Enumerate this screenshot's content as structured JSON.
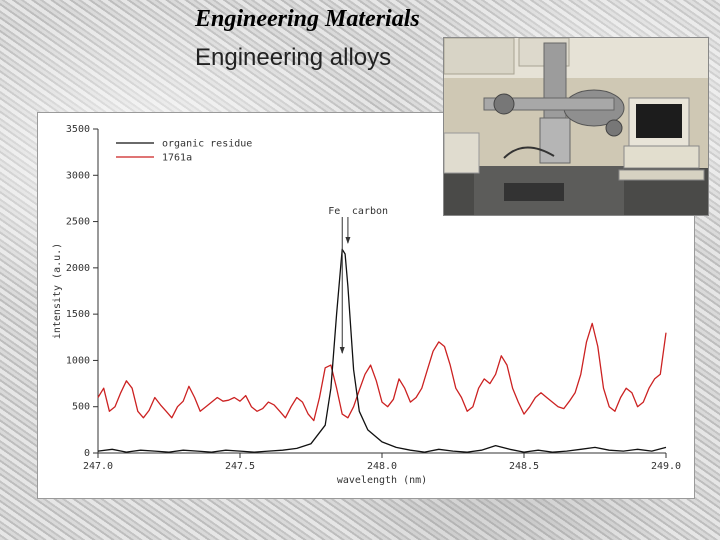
{
  "slide": {
    "title": "Engineering Materials",
    "subtitle": "Engineering alloys"
  },
  "photo": {
    "icon": "lab-instrument-photo"
  },
  "colors": {
    "organic": "#111111",
    "sample": "#cc2222",
    "axis": "#333333",
    "text": "#333333"
  },
  "chart_data": {
    "type": "line",
    "title": "",
    "xlabel": "wavelength (nm)",
    "ylabel": "intensity (a.u.)",
    "xlim": [
      247.0,
      249.0
    ],
    "ylim": [
      0,
      3500
    ],
    "xticks": [
      247.0,
      247.5,
      248.0,
      248.5,
      249.0
    ],
    "xtick_labels": [
      "247.0",
      "247.5",
      "248.0",
      "248.5",
      "249.0"
    ],
    "yticks": [
      0,
      500,
      1000,
      1500,
      2000,
      2500,
      3000,
      3500
    ],
    "ytick_labels": [
      "0",
      "500",
      "1000",
      "1500",
      "2000",
      "2500",
      "3000",
      "3500"
    ],
    "legend_position": "top-left",
    "annotations": [
      {
        "text": "Fe",
        "x": 247.86
      },
      {
        "text": "carbon",
        "x": 247.88
      }
    ],
    "series": [
      {
        "name": "organic residue",
        "color": "#111111",
        "x": [
          247.0,
          247.05,
          247.1,
          247.15,
          247.2,
          247.25,
          247.3,
          247.35,
          247.4,
          247.45,
          247.5,
          247.55,
          247.6,
          247.65,
          247.7,
          247.75,
          247.8,
          247.82,
          247.84,
          247.86,
          247.87,
          247.88,
          247.9,
          247.92,
          247.95,
          248.0,
          248.05,
          248.1,
          248.15,
          248.2,
          248.25,
          248.3,
          248.35,
          248.4,
          248.45,
          248.5,
          248.55,
          248.6,
          248.65,
          248.7,
          248.75,
          248.8,
          248.85,
          248.9,
          248.95,
          249.0
        ],
        "y": [
          20,
          40,
          10,
          30,
          20,
          10,
          30,
          20,
          10,
          30,
          20,
          10,
          20,
          30,
          50,
          100,
          300,
          700,
          1500,
          2200,
          2150,
          1800,
          900,
          450,
          250,
          120,
          60,
          30,
          10,
          40,
          20,
          10,
          30,
          80,
          40,
          10,
          30,
          10,
          20,
          40,
          60,
          30,
          20,
          40,
          20,
          60
        ]
      },
      {
        "name": "1761a",
        "color": "#cc2222",
        "x": [
          247.0,
          247.02,
          247.04,
          247.06,
          247.08,
          247.1,
          247.12,
          247.14,
          247.16,
          247.18,
          247.2,
          247.22,
          247.24,
          247.26,
          247.28,
          247.3,
          247.32,
          247.34,
          247.36,
          247.38,
          247.4,
          247.42,
          247.44,
          247.46,
          247.48,
          247.5,
          247.52,
          247.54,
          247.56,
          247.58,
          247.6,
          247.62,
          247.64,
          247.66,
          247.68,
          247.7,
          247.72,
          247.74,
          247.76,
          247.78,
          247.8,
          247.82,
          247.84,
          247.86,
          247.88,
          247.9,
          247.92,
          247.94,
          247.96,
          247.98,
          248.0,
          248.02,
          248.04,
          248.06,
          248.08,
          248.1,
          248.12,
          248.14,
          248.16,
          248.18,
          248.2,
          248.22,
          248.24,
          248.26,
          248.28,
          248.3,
          248.32,
          248.34,
          248.36,
          248.38,
          248.4,
          248.42,
          248.44,
          248.46,
          248.48,
          248.5,
          248.52,
          248.54,
          248.56,
          248.58,
          248.6,
          248.62,
          248.64,
          248.66,
          248.68,
          248.7,
          248.72,
          248.74,
          248.76,
          248.78,
          248.8,
          248.82,
          248.84,
          248.86,
          248.88,
          248.9,
          248.92,
          248.94,
          248.96,
          248.98,
          249.0
        ],
        "y": [
          600,
          700,
          450,
          500,
          650,
          780,
          700,
          450,
          380,
          460,
          600,
          520,
          450,
          380,
          500,
          560,
          720,
          600,
          450,
          500,
          550,
          600,
          560,
          570,
          600,
          560,
          620,
          500,
          450,
          480,
          550,
          520,
          450,
          380,
          500,
          600,
          550,
          420,
          350,
          600,
          920,
          950,
          700,
          420,
          380,
          500,
          680,
          850,
          950,
          780,
          550,
          500,
          580,
          800,
          700,
          550,
          600,
          700,
          900,
          1100,
          1200,
          1150,
          950,
          700,
          600,
          450,
          500,
          700,
          800,
          750,
          850,
          1050,
          950,
          700,
          550,
          420,
          500,
          600,
          650,
          600,
          550,
          500,
          480,
          560,
          650,
          850,
          1200,
          1400,
          1150,
          700,
          500,
          450,
          600,
          700,
          650,
          500,
          550,
          700,
          800,
          850,
          1300
        ]
      }
    ]
  }
}
